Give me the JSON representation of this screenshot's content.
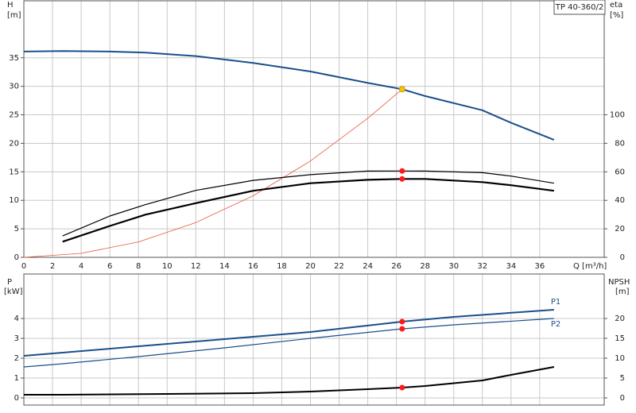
{
  "chart_data": [
    {
      "type": "line",
      "title": "TP 40-360/2",
      "y_label": "H",
      "y_unit": "[m]",
      "y2_label": "eta",
      "y2_unit": "[%]",
      "x_label": "Q [m³/h]",
      "xlim": [
        0,
        40.5
      ],
      "ylim": [
        0,
        45
      ],
      "y2lim": [
        0,
        180
      ],
      "grid": true,
      "show_xtick_labels": true,
      "xticks": [
        0,
        2,
        4,
        6,
        8,
        10,
        12,
        14,
        16,
        18,
        20,
        22,
        24,
        26,
        28,
        30,
        32,
        34,
        36
      ],
      "yticks": [
        0,
        5,
        10,
        15,
        20,
        25,
        30,
        35
      ],
      "y2ticks": [
        0,
        20,
        40,
        60,
        80,
        100
      ],
      "series": [
        {
          "color": "#1a4f8b",
          "line_width": 2,
          "axis": "y",
          "x": [
            0,
            2.7,
            6,
            8.5,
            12,
            16,
            20,
            24,
            26.4,
            28,
            32,
            34,
            37
          ],
          "values": [
            36.1,
            36.2,
            36.1,
            35.9,
            35.3,
            34.1,
            32.6,
            30.6,
            29.5,
            28.3,
            25.8,
            23.6,
            20.6
          ]
        },
        {
          "color": "#e8553a",
          "line_width": 0.8,
          "axis": "y",
          "x": [
            0,
            4,
            8,
            12,
            16,
            20,
            24,
            26.4
          ],
          "values": [
            0,
            0.7,
            2.7,
            6.1,
            10.8,
            16.9,
            24.4,
            29.5
          ]
        },
        {
          "color": "#000000",
          "line_width": 1.2,
          "axis": "y2",
          "x": [
            2.7,
            6,
            8.5,
            12,
            16,
            20,
            24,
            26.4,
            28,
            32,
            34,
            37
          ],
          "values": [
            15,
            29,
            37,
            47,
            54,
            58,
            60.5,
            60.6,
            60.5,
            59.4,
            57,
            52
          ]
        },
        {
          "color": "#000000",
          "line_width": 2.2,
          "axis": "y2",
          "x": [
            2.7,
            6,
            8.5,
            12,
            16,
            20,
            24,
            26.4,
            28,
            32,
            34,
            37
          ],
          "values": [
            11,
            22,
            30,
            38,
            46.7,
            52,
            54.4,
            55,
            55,
            52.8,
            50.6,
            46.7
          ]
        }
      ],
      "markers": [
        {
          "x": 26.4,
          "y": 29.5,
          "axis": "y",
          "color": "#f5c400"
        },
        {
          "x": 26.4,
          "y": 60.6,
          "axis": "y2",
          "color": "#ff1a1a"
        },
        {
          "x": 26.4,
          "y": 55,
          "axis": "y2",
          "color": "#ff1a1a"
        }
      ]
    },
    {
      "type": "line",
      "y_label": "P",
      "y_unit": "[kW]",
      "y2_label": "NPSH",
      "y2_unit": "[m]",
      "xlim": [
        0,
        40.5
      ],
      "ylim": [
        -0.36,
        6.24
      ],
      "y2lim": [
        -1.8,
        31.2
      ],
      "grid": true,
      "show_xtick_labels": false,
      "xticks": [
        0,
        2,
        4,
        6,
        8,
        10,
        12,
        14,
        16,
        18,
        20,
        22,
        24,
        26,
        28,
        30,
        32,
        34,
        36
      ],
      "yticks": [
        0,
        1,
        2,
        3,
        4
      ],
      "y2ticks": [
        0,
        5,
        10,
        15,
        20
      ],
      "series": [
        {
          "name": "P1",
          "color": "#1a4f8b",
          "line_width": 2,
          "axis": "y",
          "x": [
            0,
            2.7,
            8,
            14,
            20,
            26.4,
            30,
            37
          ],
          "values": [
            2.12,
            2.28,
            2.6,
            2.96,
            3.32,
            3.84,
            4.08,
            4.44
          ]
        },
        {
          "name": "P2",
          "color": "#1a4f8b",
          "line_width": 1.2,
          "axis": "y",
          "x": [
            0,
            2.7,
            8,
            14,
            20,
            26.4,
            30,
            37
          ],
          "values": [
            1.56,
            1.72,
            2.08,
            2.52,
            3.0,
            3.48,
            3.68,
            4.0
          ]
        },
        {
          "color": "#000000",
          "line_width": 2,
          "axis": "y2",
          "x": [
            0,
            2.7,
            10,
            16,
            20,
            24,
            26.4,
            28,
            32,
            34,
            37
          ],
          "values": [
            0.8,
            0.8,
            1.0,
            1.2,
            1.6,
            2.2,
            2.6,
            3.0,
            4.4,
            5.8,
            7.8
          ]
        }
      ],
      "markers": [
        {
          "x": 26.4,
          "y": 3.84,
          "axis": "y",
          "color": "#ff1a1a"
        },
        {
          "x": 26.4,
          "y": 3.48,
          "axis": "y",
          "color": "#ff1a1a"
        },
        {
          "x": 26.4,
          "y": 2.6,
          "axis": "y2",
          "color": "#ff1a1a"
        }
      ]
    }
  ]
}
